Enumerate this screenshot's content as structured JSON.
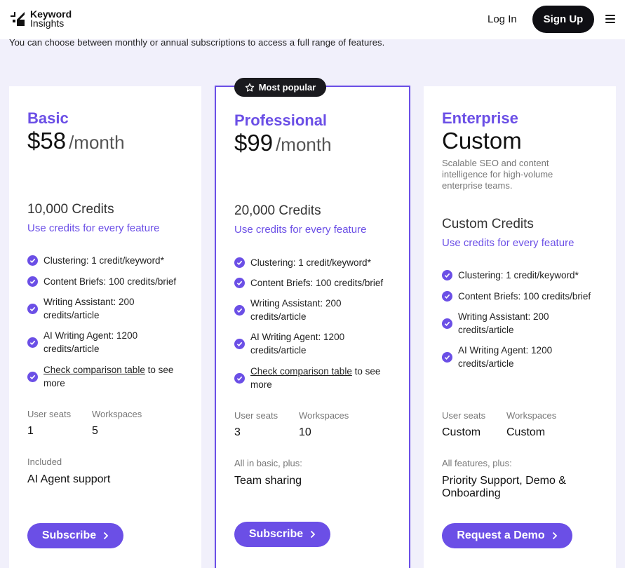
{
  "header": {
    "logo_line1": "Keyword",
    "logo_line2": "Insights",
    "login": "Log In",
    "signup": "Sign Up"
  },
  "subtitle": "You can choose between monthly or annual subscriptions to access a full range of features.",
  "badge": "Most popular",
  "plans": [
    {
      "name": "Basic",
      "price": "$58",
      "period": "/month",
      "credits": "10,000 Credits",
      "credits_sub": "Use credits for every feature",
      "features": [
        "Clustering: 1 credit/keyword*",
        "Content Briefs: 100 credits/brief",
        "Writing Assistant: 200 credits/article",
        "AI Writing Agent: 1200 credits/article"
      ],
      "compare_link": "Check comparison table",
      "compare_rest": " to see more",
      "seats_label": "User seats",
      "seats": "1",
      "workspaces_label": "Workspaces",
      "workspaces": "5",
      "included_label": "Included",
      "included": "AI Agent support",
      "cta": "Subscribe"
    },
    {
      "name": "Professional",
      "price": "$99",
      "period": "/month",
      "credits": "20,000 Credits",
      "credits_sub": "Use credits for every feature",
      "features": [
        "Clustering: 1 credit/keyword*",
        "Content Briefs: 100 credits/brief",
        "Writing Assistant: 200 credits/article",
        "AI Writing Agent: 1200 credits/article"
      ],
      "compare_link": "Check comparison table",
      "compare_rest": " to see more",
      "seats_label": "User seats",
      "seats": "3",
      "workspaces_label": "Workspaces",
      "workspaces": "10",
      "included_label": "All in basic, plus:",
      "included": "Team sharing",
      "cta": "Subscribe"
    },
    {
      "name": "Enterprise",
      "price": "Custom",
      "description": "Scalable SEO and content intelligence for high-volume enterprise teams.",
      "credits": "Custom Credits",
      "credits_sub": "Use credits for every feature",
      "features": [
        "Clustering: 1 credit/keyword*",
        "Content Briefs: 100 credits/brief",
        "Writing Assistant: 200 credits/article",
        "AI Writing Agent: 1200 credits/article"
      ],
      "seats_label": "User seats",
      "seats": "Custom",
      "workspaces_label": "Workspaces",
      "workspaces": "Custom",
      "included_label": "All features, plus:",
      "included": "Priority Support, Demo & Onboarding",
      "cta": "Request a Demo"
    }
  ],
  "colors": {
    "accent": "#6b4fe6",
    "dark": "#0f0f14",
    "page_bg": "#f1f0fb"
  }
}
